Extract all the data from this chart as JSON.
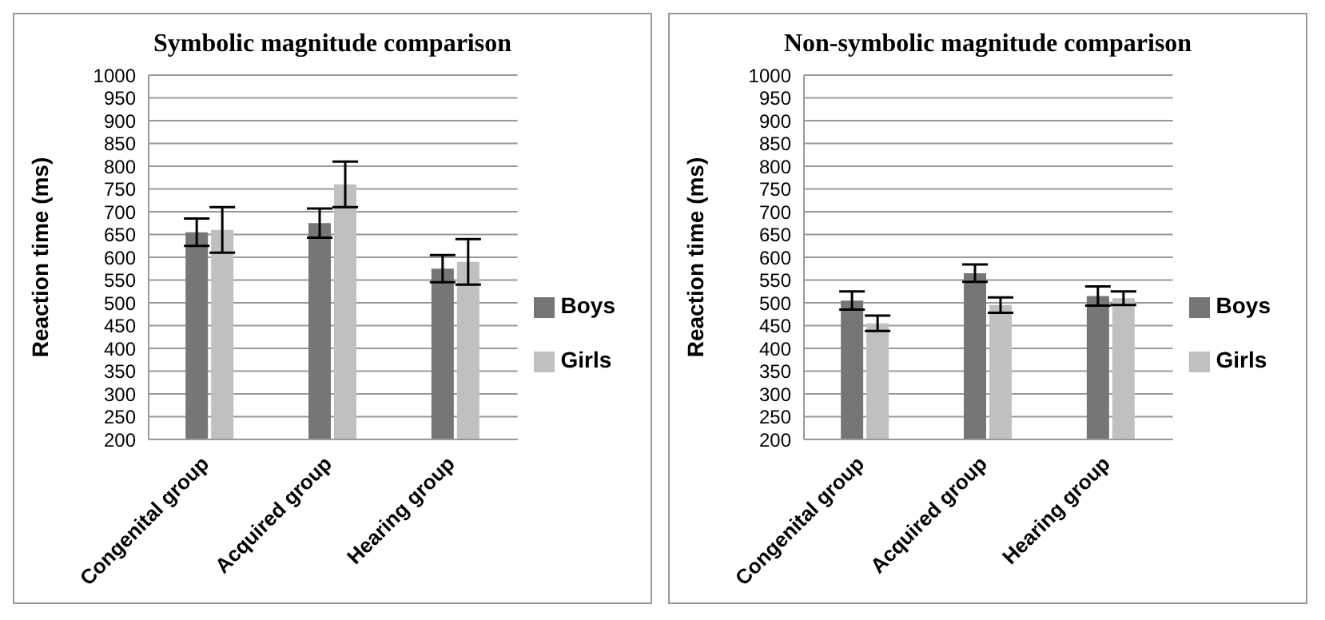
{
  "chart_data": [
    {
      "type": "bar",
      "title": "Symbolic magnitude comparison",
      "ylabel": "Reaction time (ms)",
      "categories": [
        "Congenital group",
        "Acquired group",
        "Hearing group"
      ],
      "series": [
        {
          "name": "Boys",
          "color": "#767676",
          "values": [
            655,
            675,
            575
          ],
          "errors": [
            30,
            32,
            30
          ]
        },
        {
          "name": "Girls",
          "color": "#c0c0c0",
          "values": [
            660,
            760,
            590
          ],
          "errors": [
            50,
            50,
            50
          ]
        }
      ],
      "ylim": [
        200,
        1000
      ],
      "yticks": [
        200,
        250,
        300,
        350,
        400,
        450,
        500,
        550,
        600,
        650,
        700,
        750,
        800,
        850,
        900,
        950,
        1000
      ],
      "grid": "y",
      "legend": "right"
    },
    {
      "type": "bar",
      "title": "Non-symbolic magnitude comparison",
      "ylabel": "Reaction time (ms)",
      "categories": [
        "Congenital group",
        "Acquired group",
        "Hearing group"
      ],
      "series": [
        {
          "name": "Boys",
          "color": "#767676",
          "values": [
            505,
            565,
            515
          ],
          "errors": [
            20,
            19,
            21
          ]
        },
        {
          "name": "Girls",
          "color": "#c0c0c0",
          "values": [
            455,
            495,
            510
          ],
          "errors": [
            17,
            17,
            15
          ]
        }
      ],
      "ylim": [
        200,
        1000
      ],
      "yticks": [
        200,
        250,
        300,
        350,
        400,
        450,
        500,
        550,
        600,
        650,
        700,
        750,
        800,
        850,
        900,
        950,
        1000
      ],
      "grid": "y",
      "legend": "right"
    }
  ]
}
